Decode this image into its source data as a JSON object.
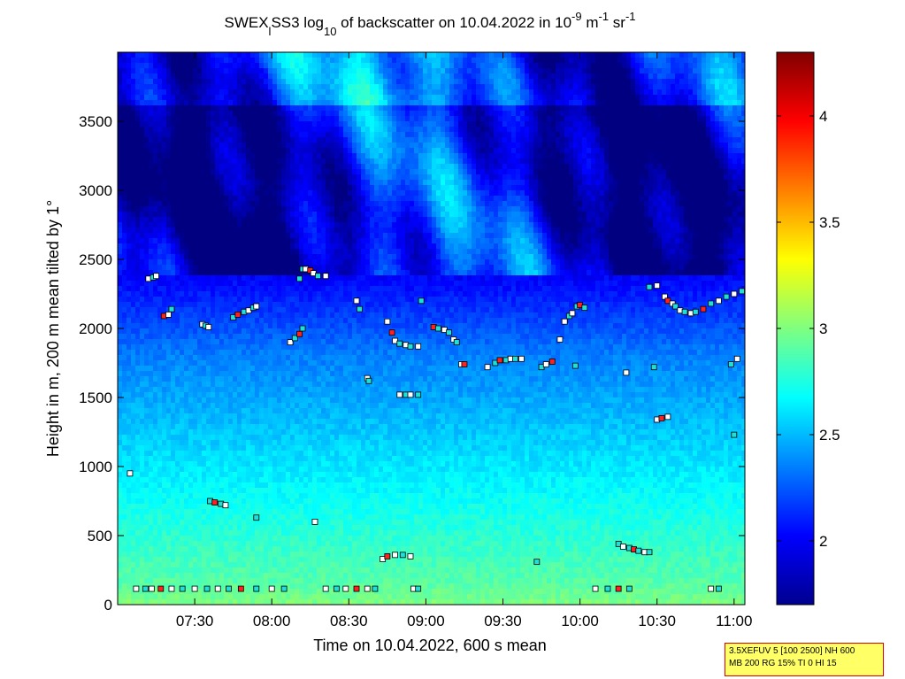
{
  "title": {
    "prefix": "SWEX",
    "sub1": "l",
    "part2": "SS3 log",
    "sub2": "10",
    "part3": " of backscatter on 10.04.2022 in 10",
    "sup1": "-9",
    "part4": " m",
    "sup2": "-1",
    "part5": " sr",
    "sup3": "-1"
  },
  "info_box": {
    "line1": "3.5XEFUV 5 [100 2500] NH 600",
    "line2": "MB 200 RG 15% TI 0 HI 15"
  },
  "colors": {
    "above": "#ffffff",
    "partial": "#1ee0d8",
    "red": "#ff2020"
  },
  "chart_data": {
    "type": "heatmap",
    "title": "SWEX_lSS3 log10 of backscatter on 10.04.2022 in 10^-9 m^-1 sr^-1",
    "xlabel": "Time on 10.04.2022, 600 s mean",
    "ylabel": "Height in m, 200 m mean tilted by 1°",
    "xlim_hours": [
      7.0,
      11.07
    ],
    "ylim": [
      0,
      4000
    ],
    "x_ticks": [
      {
        "v": 7.5,
        "label": "07:30"
      },
      {
        "v": 8.0,
        "label": "08:00"
      },
      {
        "v": 8.5,
        "label": "08:30"
      },
      {
        "v": 9.0,
        "label": "09:00"
      },
      {
        "v": 9.5,
        "label": "09:30"
      },
      {
        "v": 10.0,
        "label": "10:00"
      },
      {
        "v": 10.5,
        "label": "10:30"
      },
      {
        "v": 11.0,
        "label": "11:00"
      }
    ],
    "y_ticks": [
      0,
      500,
      1000,
      1500,
      2000,
      2500,
      3000,
      3500
    ],
    "colorbar": {
      "range": [
        1.7,
        4.3
      ],
      "ticks": [
        2,
        2.5,
        3,
        3.5,
        4
      ],
      "colormap": "jet"
    },
    "cloud_base_markers": [
      [
        7.2,
        2360
      ],
      [
        7.23,
        2370
      ],
      [
        7.25,
        2380
      ],
      [
        7.3,
        2090
      ],
      [
        7.33,
        2100
      ],
      [
        7.35,
        2140
      ],
      [
        7.55,
        2030
      ],
      [
        7.57,
        2020
      ],
      [
        7.59,
        2010
      ],
      [
        7.75,
        2080
      ],
      [
        7.78,
        2100
      ],
      [
        7.82,
        2120
      ],
      [
        7.85,
        2130
      ],
      [
        7.88,
        2150
      ],
      [
        7.9,
        2160
      ],
      [
        8.2,
        2430
      ],
      [
        8.22,
        2430
      ],
      [
        8.25,
        2420
      ],
      [
        8.27,
        2400
      ],
      [
        8.3,
        2380
      ],
      [
        8.35,
        2380
      ],
      [
        8.18,
        2360
      ],
      [
        8.12,
        1900
      ],
      [
        8.15,
        1930
      ],
      [
        8.18,
        1960
      ],
      [
        8.2,
        2000
      ],
      [
        8.55,
        2200
      ],
      [
        8.57,
        2140
      ],
      [
        8.62,
        1640
      ],
      [
        8.63,
        1620
      ],
      [
        8.75,
        2050
      ],
      [
        8.78,
        1970
      ],
      [
        8.8,
        1910
      ],
      [
        8.83,
        1890
      ],
      [
        8.87,
        1880
      ],
      [
        8.9,
        1870
      ],
      [
        8.95,
        1870
      ],
      [
        8.97,
        2200
      ],
      [
        9.05,
        2010
      ],
      [
        9.08,
        2000
      ],
      [
        9.12,
        1990
      ],
      [
        9.15,
        1970
      ],
      [
        9.18,
        1920
      ],
      [
        9.2,
        1900
      ],
      [
        9.23,
        1740
      ],
      [
        9.25,
        1740
      ],
      [
        8.83,
        1520
      ],
      [
        8.87,
        1520
      ],
      [
        8.9,
        1520
      ],
      [
        8.95,
        1520
      ],
      [
        9.4,
        1720
      ],
      [
        9.45,
        1750
      ],
      [
        9.48,
        1770
      ],
      [
        9.52,
        1770
      ],
      [
        9.55,
        1780
      ],
      [
        9.58,
        1780
      ],
      [
        9.62,
        1780
      ],
      [
        9.75,
        1720
      ],
      [
        9.78,
        1740
      ],
      [
        9.82,
        1760
      ],
      [
        9.87,
        1920
      ],
      [
        9.97,
        1730
      ],
      [
        9.9,
        2050
      ],
      [
        9.93,
        2090
      ],
      [
        9.95,
        2110
      ],
      [
        9.98,
        2160
      ],
      [
        10.0,
        2170
      ],
      [
        10.03,
        2150
      ],
      [
        10.3,
        1680
      ],
      [
        10.45,
        2300
      ],
      [
        10.5,
        2310
      ],
      [
        10.48,
        1720
      ],
      [
        10.55,
        2230
      ],
      [
        10.57,
        2200
      ],
      [
        10.6,
        2180
      ],
      [
        10.62,
        2160
      ],
      [
        10.65,
        2130
      ],
      [
        10.68,
        2120
      ],
      [
        10.72,
        2110
      ],
      [
        10.75,
        2120
      ],
      [
        10.8,
        2140
      ],
      [
        10.85,
        2180
      ],
      [
        10.9,
        2200
      ],
      [
        10.95,
        2230
      ],
      [
        11.0,
        2250
      ],
      [
        11.05,
        2270
      ],
      [
        10.5,
        1340
      ],
      [
        10.53,
        1350
      ],
      [
        10.57,
        1360
      ],
      [
        10.98,
        1740
      ],
      [
        11.02,
        1780
      ],
      [
        11.0,
        1230
      ],
      [
        7.08,
        950
      ],
      [
        7.6,
        750
      ],
      [
        7.63,
        740
      ],
      [
        7.67,
        730
      ],
      [
        7.7,
        720
      ],
      [
        7.9,
        630
      ],
      [
        8.28,
        600
      ],
      [
        9.72,
        310
      ],
      [
        8.72,
        330
      ],
      [
        8.75,
        350
      ],
      [
        8.8,
        360
      ],
      [
        8.85,
        360
      ],
      [
        8.9,
        350
      ],
      [
        10.25,
        440
      ],
      [
        10.28,
        420
      ],
      [
        10.32,
        410
      ],
      [
        10.35,
        400
      ],
      [
        10.38,
        390
      ],
      [
        10.42,
        380
      ],
      [
        10.45,
        380
      ],
      [
        7.12,
        115
      ],
      [
        7.18,
        115
      ],
      [
        7.22,
        115
      ],
      [
        7.28,
        115
      ],
      [
        7.35,
        115
      ],
      [
        7.42,
        115
      ],
      [
        7.5,
        115
      ],
      [
        7.58,
        115
      ],
      [
        7.65,
        115
      ],
      [
        7.72,
        115
      ],
      [
        7.8,
        115
      ],
      [
        7.9,
        115
      ],
      [
        8.0,
        115
      ],
      [
        8.08,
        115
      ],
      [
        8.35,
        115
      ],
      [
        8.42,
        115
      ],
      [
        8.48,
        115
      ],
      [
        8.55,
        115
      ],
      [
        8.62,
        115
      ],
      [
        8.67,
        115
      ],
      [
        8.92,
        115
      ],
      [
        8.95,
        115
      ],
      [
        10.1,
        115
      ],
      [
        10.18,
        115
      ],
      [
        10.25,
        115
      ],
      [
        10.32,
        115
      ],
      [
        10.85,
        115
      ],
      [
        10.9,
        115
      ]
    ]
  }
}
